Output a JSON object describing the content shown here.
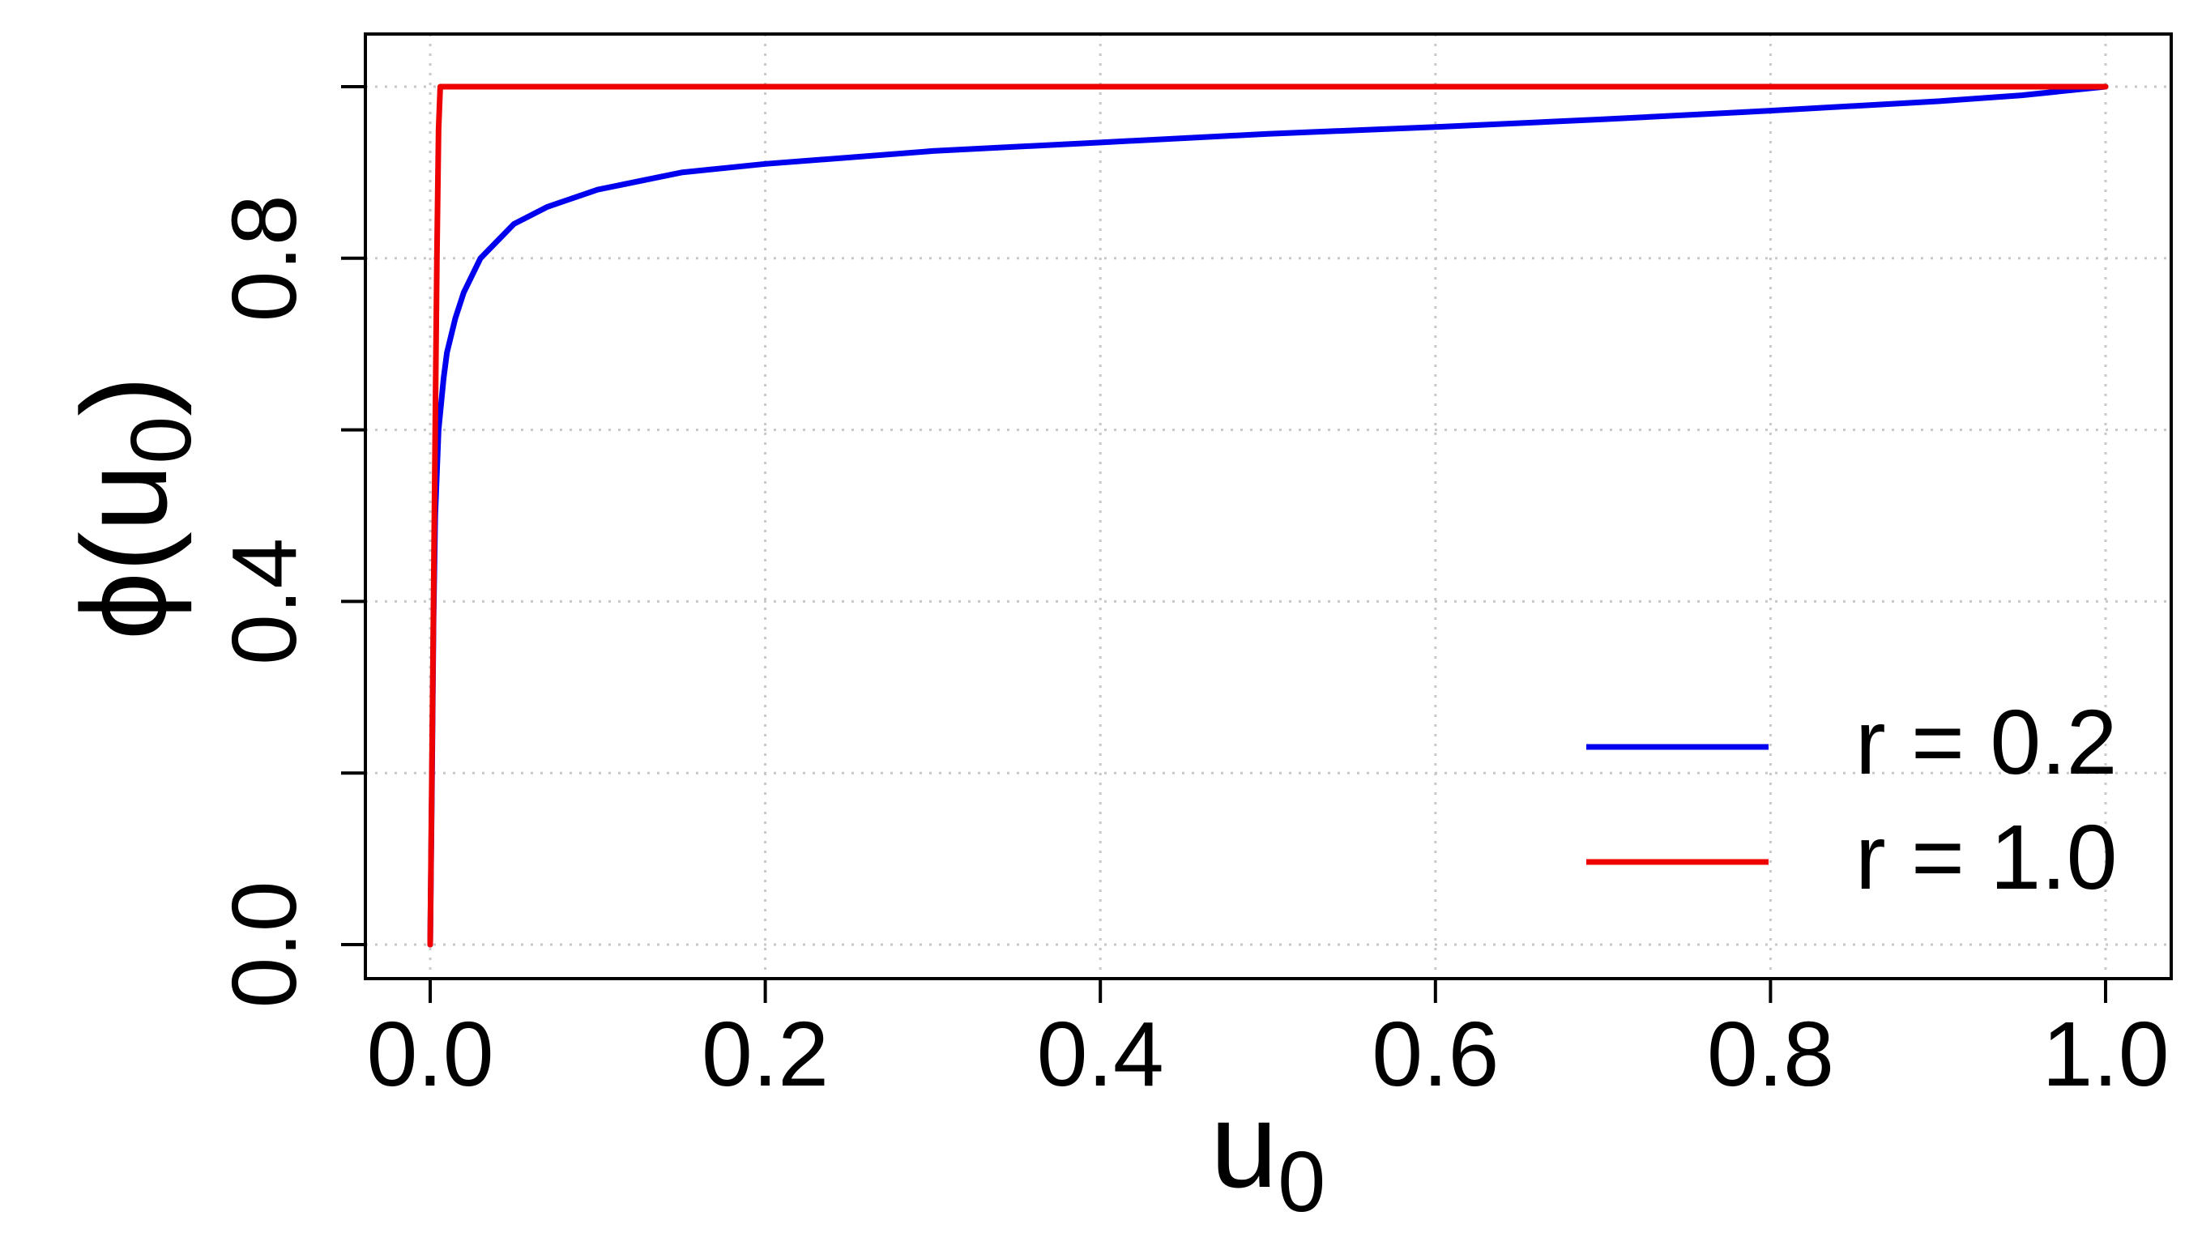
{
  "colors": {
    "r_02": "#0000ee",
    "r_10": "#ee0000",
    "grid": "#c8c8c8"
  },
  "chart_data": {
    "type": "line",
    "xlabel": {
      "base": "u",
      "sub": "0"
    },
    "ylabel": {
      "prefix": "ϕ(u",
      "sub": "0",
      "suffix": ")"
    },
    "xlim": [
      0.0,
      1.0
    ],
    "ylim": [
      0.0,
      1.0
    ],
    "x_ticks": [
      0.0,
      0.2,
      0.4,
      0.6,
      0.8,
      1.0
    ],
    "x_tick_labels": [
      "0.0",
      "0.2",
      "0.4",
      "0.6",
      "0.8",
      "1.0"
    ],
    "y_ticks": [
      0.0,
      0.2,
      0.4,
      0.6,
      0.8,
      1.0
    ],
    "y_tick_labels": [
      "0.0",
      "0.4",
      "0.8"
    ],
    "y_labeled_ticks": [
      0.0,
      0.4,
      0.8
    ],
    "grid": true,
    "legend_position": "bottom-right",
    "series": [
      {
        "name": "r = 0.2",
        "color": "#0000ee",
        "x": [
          0.0,
          0.001,
          0.002,
          0.003,
          0.005,
          0.008,
          0.01,
          0.015,
          0.02,
          0.03,
          0.04,
          0.05,
          0.07,
          0.1,
          0.15,
          0.2,
          0.3,
          0.4,
          0.5,
          0.6,
          0.7,
          0.8,
          0.9,
          0.95,
          1.0
        ],
        "y": [
          0.0,
          0.18,
          0.38,
          0.5,
          0.6,
          0.66,
          0.69,
          0.73,
          0.76,
          0.8,
          0.82,
          0.84,
          0.86,
          0.88,
          0.9,
          0.91,
          0.925,
          0.935,
          0.945,
          0.953,
          0.962,
          0.972,
          0.983,
          0.99,
          1.0
        ]
      },
      {
        "name": "r = 1.0",
        "color": "#ee0000",
        "x": [
          0.0,
          0.001,
          0.002,
          0.003,
          0.004,
          0.005,
          0.006,
          1.0
        ],
        "y": [
          0.0,
          0.2,
          0.4,
          0.6,
          0.8,
          0.95,
          1.0,
          1.0
        ]
      }
    ]
  }
}
